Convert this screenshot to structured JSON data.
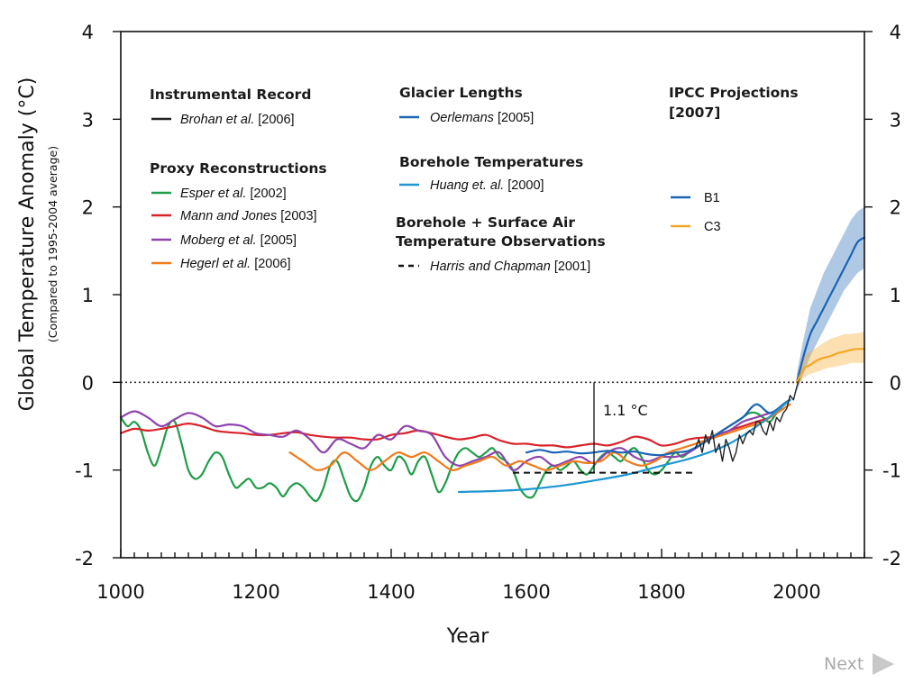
{
  "navigation": {
    "next_label": "Next"
  },
  "chart_data": {
    "type": "line",
    "title": "",
    "xlabel": "Year",
    "ylabel": "Global Temperature Anomaly (°C)",
    "ylabel_sub": "(Compared to 1995-2004 average)",
    "xlim": [
      1000,
      2100
    ],
    "ylim": [
      -2,
      4
    ],
    "x_ticks": [
      1000,
      1200,
      1400,
      1600,
      1800,
      2000
    ],
    "y_ticks": [
      -2,
      -1,
      0,
      1,
      2,
      3,
      4
    ],
    "y_tick_labels": [
      "-2",
      "-1",
      "0",
      "1",
      "2",
      "3",
      "4"
    ],
    "reference_line": {
      "y": 0,
      "style": "dotted"
    },
    "annotation": {
      "text": "1.1 °C",
      "x": 1700,
      "y_from": -1.03,
      "y_to": 0
    },
    "legend_groups": [
      {
        "heading": [
          "Instrumental Record"
        ],
        "items": [
          {
            "author": "Brohan et al.",
            "year": "[2006]",
            "color": "#222222",
            "dash": "solid"
          }
        ]
      },
      {
        "heading": [
          "Proxy Reconstructions"
        ],
        "items": [
          {
            "author": "Esper et al.",
            "year": "[2002]",
            "color": "#1f9d48",
            "dash": "solid"
          },
          {
            "author": "Mann and Jones",
            "year": "[2003]",
            "color": "#d8232a",
            "dash": "solid"
          },
          {
            "author": "Moberg et al.",
            "year": "[2005]",
            "color": "#8e44ad",
            "dash": "solid"
          },
          {
            "author": "Hegerl et al.",
            "year": "[2006]",
            "color": "#f07b1a",
            "dash": "solid"
          }
        ]
      },
      {
        "heading": [
          "Glacier Lengths"
        ],
        "items": [
          {
            "author": "Oerlemans",
            "year": "[2005]",
            "color": "#1a64b4",
            "dash": "solid"
          }
        ]
      },
      {
        "heading": [
          "Borehole Temperatures"
        ],
        "items": [
          {
            "author": "Huang et. al.",
            "year": "[2000]",
            "color": "#1e96d2",
            "dash": "solid"
          }
        ]
      },
      {
        "heading": [
          "Borehole + Surface Air",
          "Temperature Observations"
        ],
        "items": [
          {
            "author": "Harris and Chapman",
            "year": "[2001]",
            "color": "#111111",
            "dash": "dashed"
          }
        ]
      },
      {
        "heading": [
          "IPCC  Projections",
          "[2007]"
        ],
        "items": [
          {
            "author": "",
            "year": "B1",
            "color": "#1a64b4",
            "dash": "solid"
          },
          {
            "author": "",
            "year": "C3",
            "color": "#f5a623",
            "dash": "solid"
          }
        ]
      }
    ],
    "series": [
      {
        "name": "Esper et al. [2002]",
        "color": "#1f9d48",
        "x": [
          1000,
          1010,
          1020,
          1030,
          1040,
          1050,
          1060,
          1070,
          1080,
          1090,
          1100,
          1110,
          1120,
          1130,
          1140,
          1150,
          1160,
          1170,
          1180,
          1190,
          1200,
          1210,
          1220,
          1230,
          1240,
          1250,
          1260,
          1270,
          1280,
          1290,
          1300,
          1310,
          1320,
          1330,
          1340,
          1350,
          1360,
          1370,
          1380,
          1390,
          1400,
          1410,
          1420,
          1430,
          1440,
          1450,
          1460,
          1470,
          1480,
          1490,
          1500,
          1510,
          1520,
          1530,
          1540,
          1550,
          1560,
          1570,
          1580,
          1590,
          1600,
          1610,
          1620,
          1630,
          1640,
          1650,
          1660,
          1670,
          1680,
          1690,
          1700,
          1710,
          1720,
          1730,
          1740,
          1750,
          1760,
          1770,
          1780,
          1790,
          1800,
          1810,
          1820,
          1830,
          1840,
          1850,
          1860,
          1870,
          1880,
          1890,
          1900,
          1910,
          1920,
          1930,
          1940,
          1950,
          1960,
          1970,
          1980,
          1990
        ],
        "y": [
          -0.4,
          -0.5,
          -0.45,
          -0.55,
          -0.8,
          -0.95,
          -0.75,
          -0.5,
          -0.45,
          -0.7,
          -1.0,
          -1.1,
          -1.05,
          -0.9,
          -0.8,
          -0.85,
          -1.05,
          -1.2,
          -1.15,
          -1.1,
          -1.2,
          -1.2,
          -1.15,
          -1.2,
          -1.3,
          -1.2,
          -1.15,
          -1.2,
          -1.3,
          -1.35,
          -1.2,
          -0.95,
          -0.9,
          -1.1,
          -1.3,
          -1.35,
          -1.2,
          -0.95,
          -0.85,
          -0.95,
          -1.0,
          -0.85,
          -0.9,
          -1.05,
          -0.9,
          -0.85,
          -1.05,
          -1.25,
          -1.15,
          -0.95,
          -0.8,
          -0.75,
          -0.8,
          -0.85,
          -0.8,
          -0.75,
          -0.85,
          -0.9,
          -1.0,
          -1.2,
          -1.3,
          -1.3,
          -1.15,
          -1.0,
          -0.95,
          -1.0,
          -0.95,
          -0.9,
          -1.0,
          -1.05,
          -0.95,
          -0.85,
          -0.8,
          -0.85,
          -0.9,
          -0.8,
          -0.75,
          -0.85,
          -1.0,
          -1.05,
          -1.0,
          -0.9,
          -0.8,
          -0.85,
          -0.8,
          -0.75,
          -0.7,
          -0.65,
          -0.6,
          -0.55,
          -0.5,
          -0.45,
          -0.4,
          -0.35,
          -0.35,
          -0.4,
          -0.45,
          -0.35,
          -0.25,
          -0.2
        ]
      },
      {
        "name": "Mann and Jones [2003]",
        "color": "#d8232a",
        "x": [
          1000,
          1020,
          1040,
          1060,
          1080,
          1100,
          1120,
          1140,
          1160,
          1180,
          1200,
          1220,
          1240,
          1260,
          1280,
          1300,
          1320,
          1340,
          1360,
          1380,
          1400,
          1420,
          1440,
          1460,
          1480,
          1500,
          1520,
          1540,
          1560,
          1580,
          1600,
          1620,
          1640,
          1660,
          1680,
          1700,
          1720,
          1740,
          1760,
          1780,
          1800,
          1820,
          1840,
          1860,
          1880,
          1900,
          1920,
          1940,
          1960,
          1980
        ],
        "y": [
          -0.58,
          -0.53,
          -0.55,
          -0.53,
          -0.5,
          -0.47,
          -0.5,
          -0.55,
          -0.57,
          -0.58,
          -0.6,
          -0.6,
          -0.58,
          -0.57,
          -0.6,
          -0.62,
          -0.63,
          -0.63,
          -0.65,
          -0.65,
          -0.6,
          -0.58,
          -0.55,
          -0.58,
          -0.62,
          -0.65,
          -0.63,
          -0.6,
          -0.66,
          -0.7,
          -0.7,
          -0.72,
          -0.72,
          -0.74,
          -0.72,
          -0.7,
          -0.72,
          -0.68,
          -0.62,
          -0.65,
          -0.72,
          -0.7,
          -0.65,
          -0.63,
          -0.62,
          -0.55,
          -0.5,
          -0.45,
          -0.4,
          -0.3
        ]
      },
      {
        "name": "Moberg et al. [2005]",
        "color": "#8e44ad",
        "x": [
          1000,
          1020,
          1040,
          1060,
          1080,
          1100,
          1120,
          1140,
          1160,
          1180,
          1200,
          1220,
          1240,
          1260,
          1280,
          1300,
          1320,
          1340,
          1360,
          1380,
          1400,
          1420,
          1440,
          1460,
          1480,
          1500,
          1520,
          1540,
          1560,
          1580,
          1600,
          1620,
          1640,
          1660,
          1680,
          1700,
          1720,
          1740,
          1760,
          1780,
          1800,
          1820,
          1840,
          1860,
          1880,
          1900,
          1920,
          1940,
          1960,
          1980
        ],
        "y": [
          -0.4,
          -0.33,
          -0.4,
          -0.5,
          -0.42,
          -0.35,
          -0.4,
          -0.5,
          -0.48,
          -0.5,
          -0.58,
          -0.6,
          -0.62,
          -0.55,
          -0.65,
          -0.8,
          -0.65,
          -0.7,
          -0.75,
          -0.6,
          -0.65,
          -0.5,
          -0.55,
          -0.6,
          -0.85,
          -0.95,
          -0.9,
          -0.85,
          -0.8,
          -1.0,
          -0.9,
          -0.85,
          -0.95,
          -0.9,
          -0.85,
          -0.92,
          -0.8,
          -0.75,
          -0.85,
          -0.9,
          -0.85,
          -0.85,
          -0.8,
          -0.7,
          -0.6,
          -0.55,
          -0.45,
          -0.4,
          -0.35,
          -0.3
        ]
      },
      {
        "name": "Hegerl et al. [2006]",
        "color": "#f07b1a",
        "x": [
          1250,
          1270,
          1290,
          1310,
          1330,
          1350,
          1370,
          1390,
          1410,
          1430,
          1450,
          1470,
          1490,
          1510,
          1530,
          1550,
          1570,
          1590,
          1610,
          1630,
          1650,
          1670,
          1690,
          1710,
          1730,
          1750,
          1770,
          1790,
          1810,
          1830,
          1850,
          1870,
          1890,
          1910,
          1930,
          1950,
          1970,
          1990
        ],
        "y": [
          -0.8,
          -0.9,
          -1.0,
          -0.95,
          -0.8,
          -0.9,
          -1.0,
          -0.9,
          -0.8,
          -0.85,
          -0.8,
          -0.9,
          -1.0,
          -0.95,
          -0.9,
          -0.85,
          -0.95,
          -0.9,
          -0.95,
          -1.0,
          -0.95,
          -0.9,
          -0.92,
          -0.9,
          -0.8,
          -0.9,
          -0.95,
          -0.9,
          -0.8,
          -0.75,
          -0.7,
          -0.65,
          -0.6,
          -0.55,
          -0.5,
          -0.45,
          -0.35,
          -0.25
        ]
      },
      {
        "name": "Oerlemans [2005]",
        "color": "#1a64b4",
        "x": [
          1600,
          1620,
          1640,
          1660,
          1680,
          1700,
          1720,
          1740,
          1760,
          1780,
          1800,
          1820,
          1840,
          1860,
          1880,
          1900,
          1920,
          1940,
          1960,
          1980,
          1990
        ],
        "y": [
          -0.8,
          -0.77,
          -0.8,
          -0.79,
          -0.81,
          -0.8,
          -0.78,
          -0.8,
          -0.79,
          -0.82,
          -0.83,
          -0.8,
          -0.78,
          -0.7,
          -0.6,
          -0.5,
          -0.4,
          -0.25,
          -0.35,
          -0.25,
          -0.2
        ]
      },
      {
        "name": "Huang et. al. [2000]",
        "color": "#1e96d2",
        "x": [
          1500,
          1550,
          1600,
          1650,
          1700,
          1750,
          1800,
          1850,
          1900,
          1950,
          1990
        ],
        "y": [
          -1.25,
          -1.24,
          -1.22,
          -1.18,
          -1.12,
          -1.05,
          -0.95,
          -0.85,
          -0.7,
          -0.45,
          -0.2
        ]
      },
      {
        "name": "Harris and Chapman [2001]",
        "color": "#111111",
        "dash": "dashed",
        "x": [
          1580,
          1850
        ],
        "y": [
          -1.03,
          -1.03
        ]
      },
      {
        "name": "Brohan et al. [2006]",
        "color": "#222222",
        "x": [
          1850,
          1855,
          1860,
          1865,
          1870,
          1875,
          1880,
          1885,
          1890,
          1895,
          1900,
          1905,
          1910,
          1915,
          1920,
          1925,
          1930,
          1935,
          1940,
          1945,
          1950,
          1955,
          1960,
          1965,
          1970,
          1975,
          1980,
          1985,
          1990,
          1995,
          2000,
          2004
        ],
        "y": [
          -0.75,
          -0.65,
          -0.8,
          -0.6,
          -0.7,
          -0.55,
          -0.8,
          -0.7,
          -0.9,
          -0.65,
          -0.75,
          -0.9,
          -0.8,
          -0.6,
          -0.7,
          -0.6,
          -0.55,
          -0.6,
          -0.45,
          -0.45,
          -0.55,
          -0.6,
          -0.45,
          -0.55,
          -0.4,
          -0.45,
          -0.35,
          -0.3,
          -0.15,
          -0.2,
          -0.05,
          0.05
        ]
      },
      {
        "name": "B1",
        "color": "#1a64b4",
        "x": [
          2000,
          2010,
          2020,
          2030,
          2040,
          2050,
          2060,
          2070,
          2080,
          2090,
          2100
        ],
        "y": [
          0.0,
          0.3,
          0.55,
          0.7,
          0.85,
          1.0,
          1.15,
          1.3,
          1.45,
          1.6,
          1.65
        ],
        "band_low": [
          -0.1,
          0.1,
          0.3,
          0.45,
          0.6,
          0.75,
          0.9,
          1.05,
          1.15,
          1.25,
          1.3
        ],
        "band_high": [
          0.1,
          0.5,
          0.85,
          1.05,
          1.25,
          1.4,
          1.55,
          1.7,
          1.85,
          1.95,
          2.0
        ]
      },
      {
        "name": "C3",
        "color": "#f5a623",
        "x": [
          2000,
          2010,
          2020,
          2030,
          2040,
          2050,
          2060,
          2070,
          2080,
          2090,
          2100
        ],
        "y": [
          0.0,
          0.15,
          0.2,
          0.25,
          0.28,
          0.3,
          0.33,
          0.35,
          0.37,
          0.38,
          0.38
        ],
        "band_low": [
          -0.05,
          0.05,
          0.1,
          0.12,
          0.15,
          0.17,
          0.18,
          0.2,
          0.22,
          0.22,
          0.22
        ],
        "band_high": [
          0.05,
          0.3,
          0.35,
          0.4,
          0.45,
          0.5,
          0.52,
          0.55,
          0.55,
          0.56,
          0.58
        ]
      }
    ]
  }
}
